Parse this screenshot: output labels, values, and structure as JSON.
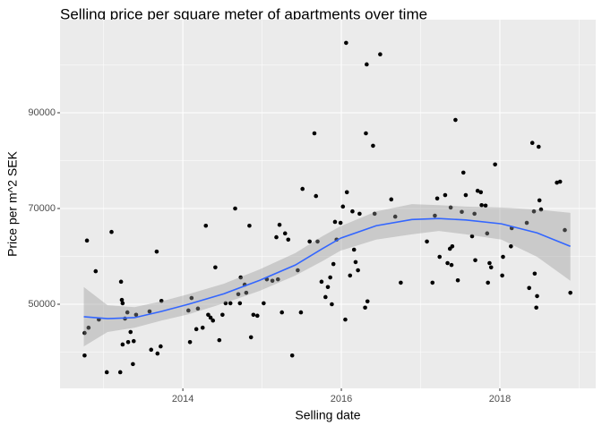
{
  "chart_data": {
    "type": "scatter",
    "title": "Selling price per square meter of apartments over time",
    "x_label": "Selling date",
    "y_label": "Price per m^2 SEK",
    "xlim": [
      2012.45,
      2019.21
    ],
    "ylim": [
      32430,
      109440
    ],
    "xticks": [
      2014,
      2016,
      2018
    ],
    "yticks": [
      50000,
      70000,
      90000
    ],
    "x_minor_grid": [
      2013,
      2015,
      2017,
      2019
    ],
    "y_minor_grid": [
      40000,
      60000,
      80000,
      100000
    ],
    "grid": true,
    "color": "#000000",
    "x": [
      2012.76,
      2012.76,
      2012.79,
      2012.81,
      2012.9,
      2012.94,
      2013.04,
      2013.1,
      2013.21,
      2013.22,
      2013.23,
      2013.24,
      2013.24,
      2013.27,
      2013.3,
      2013.31,
      2013.34,
      2013.37,
      2013.38,
      2013.41,
      2013.58,
      2013.6,
      2013.67,
      2013.68,
      2013.73,
      2013.72,
      2014.07,
      2014.09,
      2014.11,
      2014.17,
      2014.19,
      2014.25,
      2014.29,
      2014.32,
      2014.35,
      2014.38,
      2014.41,
      2014.46,
      2014.5,
      2014.54,
      2014.6,
      2014.66,
      2014.7,
      2014.72,
      2014.73,
      2014.78,
      2014.8,
      2014.84,
      2014.86,
      2014.89,
      2014.94,
      2015.02,
      2015.06,
      2015.13,
      2015.18,
      2015.2,
      2015.22,
      2015.25,
      2015.29,
      2015.33,
      2015.38,
      2015.45,
      2015.49,
      2015.51,
      2015.6,
      2015.66,
      2015.68,
      2015.7,
      2015.75,
      2015.8,
      2015.83,
      2015.86,
      2015.88,
      2015.9,
      2015.92,
      2015.94,
      2015.99,
      2016.02,
      2016.05,
      2016.06,
      2016.07,
      2016.11,
      2016.14,
      2016.16,
      2016.18,
      2016.21,
      2016.23,
      2016.3,
      2016.31,
      2016.32,
      2016.33,
      2016.4,
      2016.42,
      2016.49,
      2016.63,
      2016.68,
      2016.75,
      2017.08,
      2017.15,
      2017.18,
      2017.21,
      2017.24,
      2017.31,
      2017.34,
      2017.37,
      2017.38,
      2017.4,
      2017.39,
      2017.44,
      2017.47,
      2017.52,
      2017.54,
      2017.57,
      2017.65,
      2017.68,
      2017.69,
      2017.72,
      2017.76,
      2017.77,
      2017.82,
      2017.84,
      2017.85,
      2017.87,
      2017.89,
      2017.94,
      2018.03,
      2018.04,
      2018.14,
      2018.15,
      2018.34,
      2018.37,
      2018.41,
      2018.43,
      2018.44,
      2018.46,
      2018.47,
      2018.49,
      2018.5,
      2018.52,
      2018.72,
      2018.76,
      2018.82,
      2018.89
    ],
    "values": [
      44000,
      39300,
      63300,
      45100,
      56900,
      46800,
      35800,
      65100,
      35800,
      54700,
      50900,
      50200,
      41600,
      47000,
      48300,
      42100,
      44200,
      37500,
      42300,
      47800,
      48500,
      40500,
      61000,
      39700,
      50700,
      41200,
      48700,
      42100,
      51300,
      44800,
      49100,
      45100,
      66400,
      47800,
      47200,
      46600,
      57700,
      42500,
      47800,
      50200,
      50200,
      70000,
      52100,
      50200,
      55600,
      54100,
      52400,
      66400,
      43100,
      47800,
      47600,
      50200,
      55200,
      54900,
      64000,
      55200,
      66600,
      48300,
      64800,
      63500,
      39300,
      57100,
      48300,
      74100,
      63100,
      85700,
      72600,
      63100,
      54700,
      51500,
      53600,
      55600,
      50000,
      58400,
      67200,
      63500,
      67000,
      70400,
      46800,
      104600,
      73400,
      56000,
      69400,
      61400,
      58800,
      57100,
      68900,
      49300,
      85700,
      100100,
      50600,
      83100,
      68900,
      102200,
      71900,
      68300,
      54500,
      63100,
      54500,
      68500,
      72100,
      59900,
      72800,
      58600,
      61600,
      70200,
      62100,
      58200,
      88500,
      55000,
      69300,
      77500,
      72800,
      64200,
      68900,
      59200,
      73700,
      73400,
      70700,
      70600,
      64800,
      54500,
      58600,
      57700,
      79200,
      56000,
      59900,
      62100,
      65900,
      67000,
      53400,
      83700,
      69400,
      56400,
      49300,
      51700,
      82900,
      71700,
      69800,
      75400,
      75600,
      65500,
      52400
    ],
    "smooth": {
      "color": "#3366FF",
      "band_color": "#999999",
      "x": [
        2012.75,
        2013.05,
        2013.39,
        2013.73,
        2014.07,
        2014.52,
        2014.97,
        2015.42,
        2015.76,
        2015.99,
        2016.44,
        2016.89,
        2017.23,
        2017.57,
        2018.02,
        2018.47,
        2018.89
      ],
      "values": [
        47400,
        47000,
        47200,
        48500,
        50000,
        52200,
        55000,
        58200,
        61600,
        63800,
        66400,
        67700,
        67900,
        67600,
        66800,
        64900,
        62100
      ],
      "upper": [
        53600,
        49800,
        49400,
        50600,
        52100,
        54300,
        57300,
        60700,
        64200,
        66300,
        69400,
        70900,
        70700,
        70400,
        70200,
        69800,
        69100
      ],
      "lower": [
        41200,
        44200,
        45100,
        46600,
        47900,
        50200,
        52800,
        56000,
        59000,
        61200,
        63500,
        64600,
        65300,
        64600,
        63500,
        59900,
        54900
      ]
    }
  }
}
